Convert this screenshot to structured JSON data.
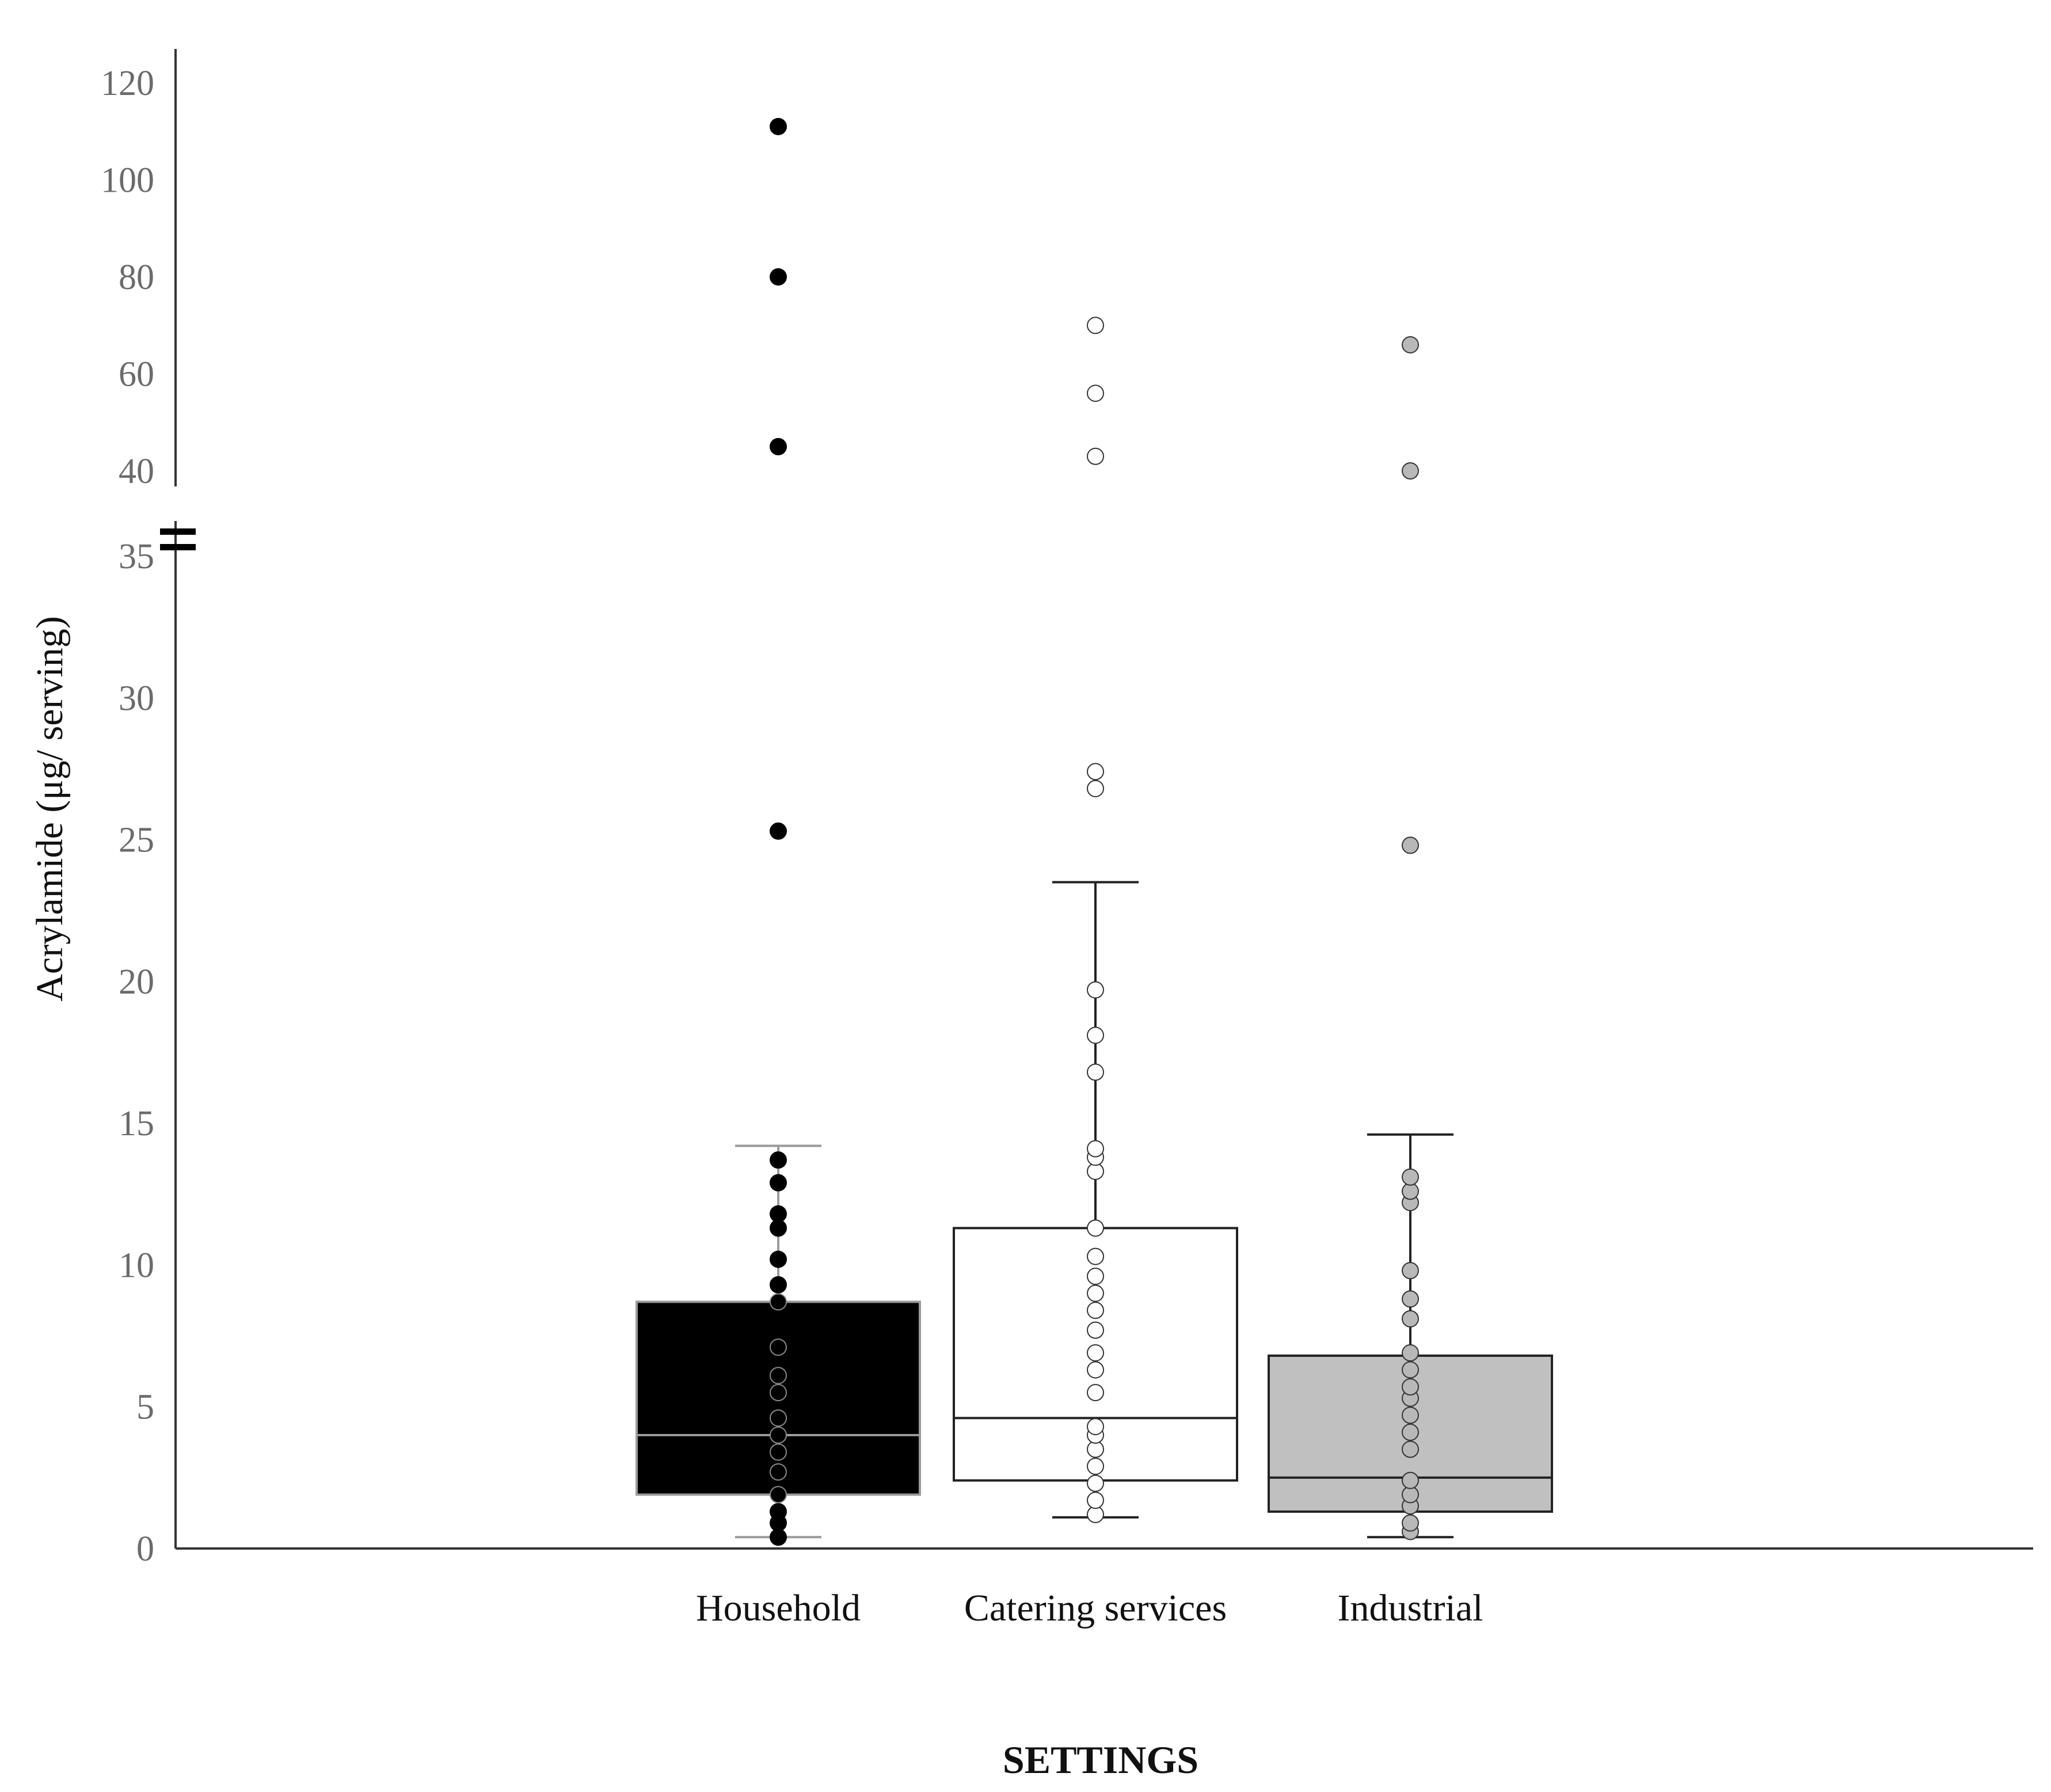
{
  "chart_data": {
    "type": "box",
    "title": "",
    "xlabel": "SETTINGS",
    "ylabel": "Acrylamide (μg/ serving)",
    "axis_break": true,
    "y_lower_segment": {
      "ylim": [
        0,
        35
      ],
      "ticks": [
        0,
        5,
        10,
        15,
        20,
        25,
        30,
        35
      ]
    },
    "y_upper_segment": {
      "ylim": [
        40,
        120
      ],
      "ticks": [
        40,
        60,
        80,
        100,
        120
      ]
    },
    "grid": false,
    "legend": "none",
    "categories": [
      "Household",
      "Catering services",
      "Industrial"
    ],
    "series": [
      {
        "category": "Household",
        "fill": "#000000",
        "edge": "#9a9a9a",
        "median_color": "#9a9a9a",
        "whisker_color": "#9a9a9a",
        "point_fill": "#000000",
        "box": {
          "whisker_low": 0.4,
          "q1": 1.9,
          "median": 4.0,
          "q3": 8.7,
          "whisker_high": 14.2
        },
        "points": [
          0.4,
          0.9,
          1.3,
          1.9,
          2.7,
          3.4,
          4.0,
          4.6,
          5.5,
          6.1,
          7.1,
          8.7,
          9.3,
          10.2,
          11.3,
          11.8,
          12.9,
          13.7,
          25.3,
          45,
          80,
          111
        ]
      },
      {
        "category": "Catering services",
        "fill": "#ffffff",
        "edge": "#222222",
        "median_color": "#222222",
        "whisker_color": "#222222",
        "point_fill": "#ffffff",
        "box": {
          "whisker_low": 1.1,
          "q1": 2.4,
          "median": 4.6,
          "q3": 11.3,
          "whisker_high": 23.5
        },
        "points": [
          1.2,
          1.7,
          2.3,
          2.9,
          3.5,
          4.0,
          4.3,
          5.5,
          6.3,
          6.9,
          7.7,
          8.4,
          9.0,
          9.6,
          10.3,
          11.3,
          13.3,
          13.8,
          14.1,
          16.8,
          18.1,
          19.7,
          26.8,
          27.4,
          43,
          56,
          70
        ]
      },
      {
        "category": "Industrial",
        "fill": "#c0c0c0",
        "edge": "#222222",
        "median_color": "#222222",
        "whisker_color": "#222222",
        "point_fill": "#b8b8b8",
        "box": {
          "whisker_low": 0.4,
          "q1": 1.3,
          "median": 2.5,
          "q3": 6.8,
          "whisker_high": 14.6
        },
        "points": [
          0.6,
          0.9,
          1.5,
          1.9,
          2.4,
          3.5,
          4.1,
          4.7,
          5.3,
          5.7,
          6.3,
          6.9,
          8.1,
          8.8,
          9.8,
          12.2,
          12.6,
          13.1,
          24.8,
          40,
          66
        ]
      }
    ]
  }
}
